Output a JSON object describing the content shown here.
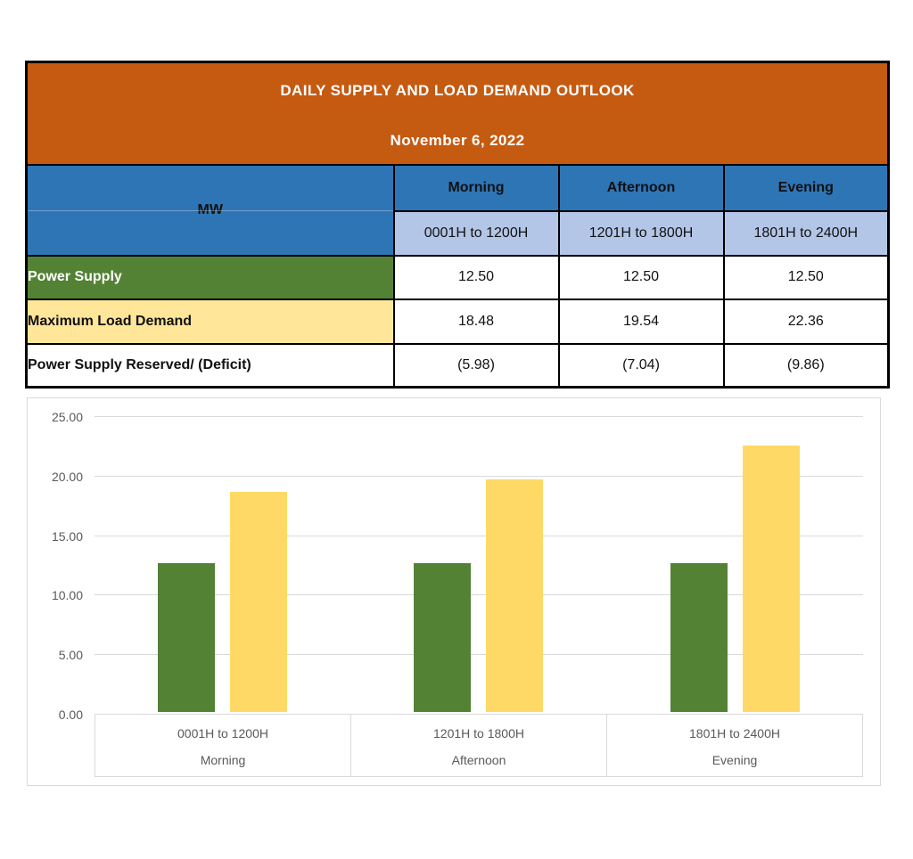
{
  "table": {
    "title": "DAILY SUPPLY AND LOAD DEMAND OUTLOOK",
    "date": "November 6, 2022",
    "unit_label": "MW",
    "columns": [
      {
        "period": "Morning",
        "hours": "0001H to 1200H"
      },
      {
        "period": "Afternoon",
        "hours": "1201H to 1800H"
      },
      {
        "period": "Evening",
        "hours": "1801H to 2400H"
      }
    ],
    "rows": [
      {
        "label": "Power Supply",
        "values": [
          "12.50",
          "12.50",
          "12.50"
        ]
      },
      {
        "label": "Maximum Load Demand",
        "values": [
          "18.48",
          "19.54",
          "22.36"
        ]
      },
      {
        "label": "Power Supply Reserved/ (Deficit)",
        "values": [
          "(5.98)",
          "(7.04)",
          "(9.86)"
        ]
      }
    ]
  },
  "chart_data": {
    "type": "bar",
    "title": "",
    "categories": [
      "0001H to 1200H",
      "1201H to 1800H",
      "1801H to 2400H"
    ],
    "category_groups": [
      "Morning",
      "Afternoon",
      "Evening"
    ],
    "series": [
      {
        "name": "Power Supply",
        "color": "#548235",
        "values": [
          12.5,
          12.5,
          12.5
        ]
      },
      {
        "name": "Maximum Load Demand",
        "color": "#FFD966",
        "values": [
          18.48,
          19.54,
          22.36
        ]
      }
    ],
    "xlabel": "",
    "ylabel": "",
    "ylim": [
      0,
      25
    ],
    "yticks": [
      "0.00",
      "5.00",
      "10.00",
      "15.00",
      "20.00",
      "25.00"
    ],
    "grid": true,
    "legend": "none"
  },
  "colors": {
    "header_orange": "#C55A11",
    "header_blue": "#2E75B6",
    "subheader_light_blue": "#B4C6E7",
    "supply_green": "#548235",
    "demand_yellow_row": "#FFE699",
    "bar_yellow": "#FFD966",
    "gridline_gray": "#D9D9D9",
    "axis_text_gray": "#595959",
    "table_border": "#000000"
  }
}
